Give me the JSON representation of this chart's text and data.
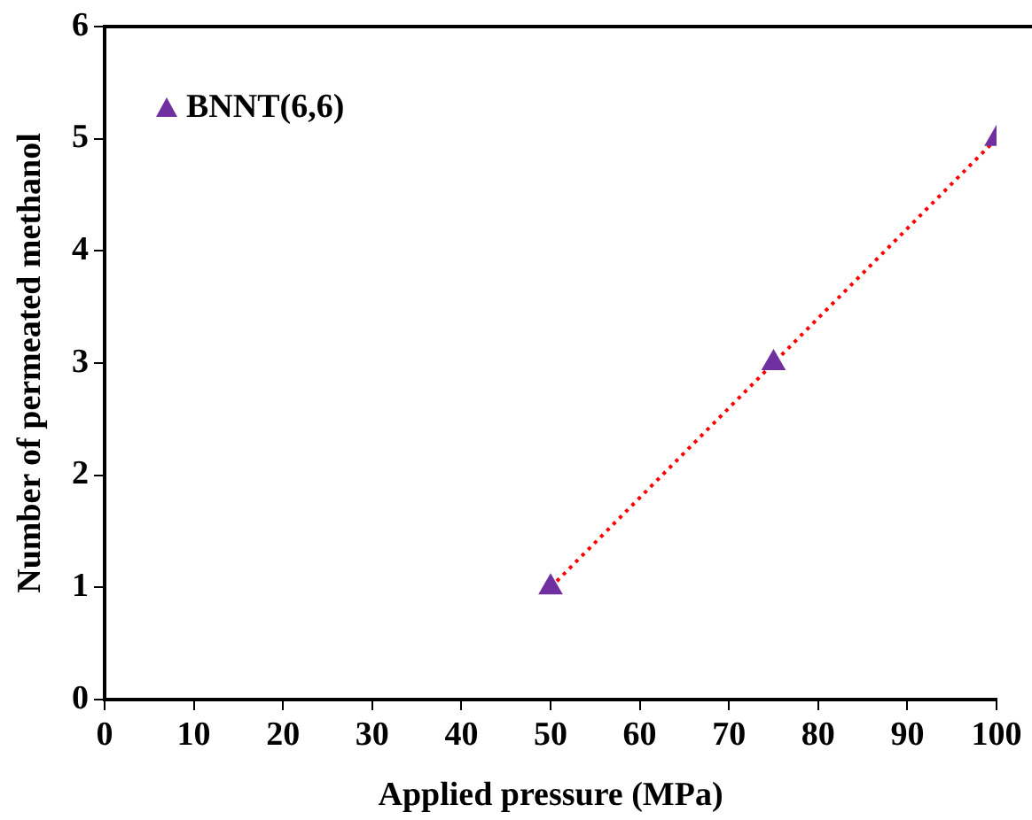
{
  "chart_data": {
    "type": "scatter",
    "xlabel": "Applied pressure (MPa)",
    "ylabel": "Number of permeated methanol",
    "xlim": [
      0,
      100
    ],
    "xticks": [
      0,
      10,
      20,
      30,
      40,
      50,
      60,
      70,
      80,
      90,
      100
    ],
    "ylim": [
      0,
      6
    ],
    "yticks": [
      0,
      1,
      2,
      3,
      4,
      5,
      6
    ],
    "grid": false,
    "legend": "top left",
    "marker": "triangle",
    "series": [
      {
        "name": "BNNT(6,6)",
        "color": "#7030a0",
        "x": [
          50,
          75,
          100
        ],
        "values": [
          1,
          3,
          5
        ]
      },
      {
        "type": "line",
        "color": "#ff0000",
        "x": [
          50,
          100
        ],
        "values": [
          1,
          5
        ],
        "line_style": "dotted",
        "marker": "none"
      }
    ]
  }
}
